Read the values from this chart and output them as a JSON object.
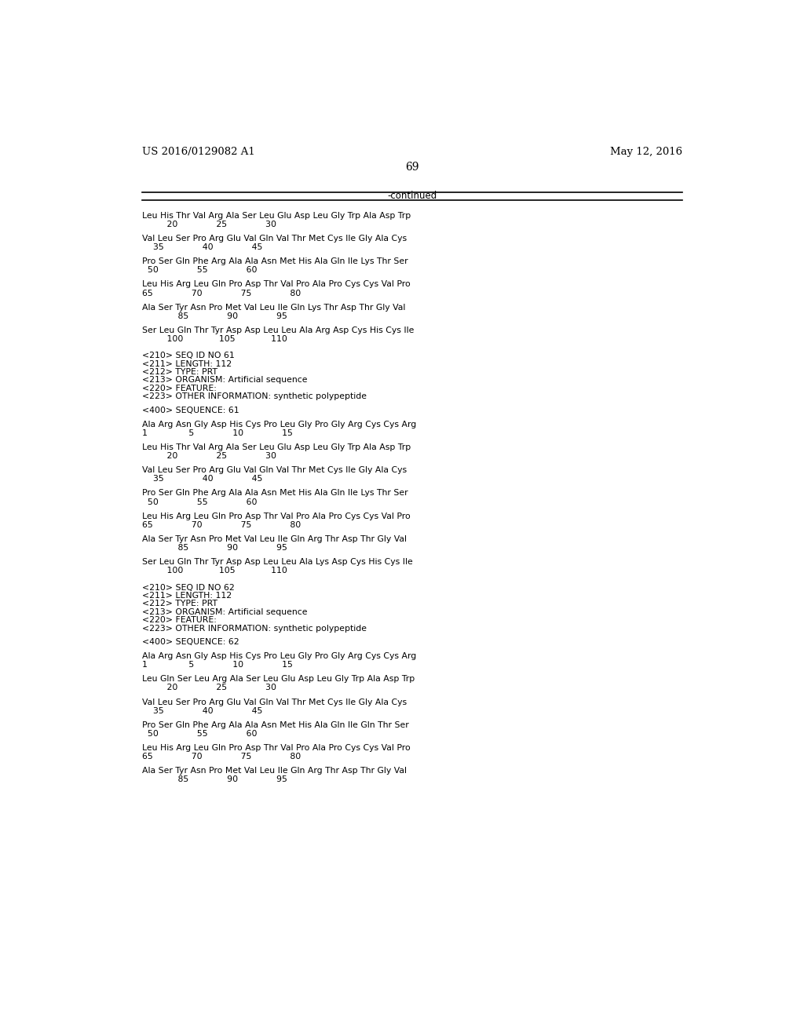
{
  "header_left": "US 2016/0129082 A1",
  "header_right": "May 12, 2016",
  "page_number": "69",
  "continued_label": "-continued",
  "background_color": "#ffffff",
  "text_color": "#000000",
  "mono_font": "Courier New",
  "serif_font": "DejaVu Serif",
  "content": [
    {
      "type": "seq_line",
      "text": "Leu His Thr Val Arg Ala Ser Leu Glu Asp Leu Gly Trp Ala Asp Trp"
    },
    {
      "type": "num_line",
      "text": "         20              25              30"
    },
    {
      "type": "gap"
    },
    {
      "type": "seq_line",
      "text": "Val Leu Ser Pro Arg Glu Val Gln Val Thr Met Cys Ile Gly Ala Cys"
    },
    {
      "type": "num_line",
      "text": "    35              40              45"
    },
    {
      "type": "gap"
    },
    {
      "type": "seq_line",
      "text": "Pro Ser Gln Phe Arg Ala Ala Asn Met His Ala Gln Ile Lys Thr Ser"
    },
    {
      "type": "num_line",
      "text": "  50              55              60"
    },
    {
      "type": "gap"
    },
    {
      "type": "seq_line",
      "text": "Leu His Arg Leu Gln Pro Asp Thr Val Pro Ala Pro Cys Cys Val Pro"
    },
    {
      "type": "num_line",
      "text": "65              70              75              80"
    },
    {
      "type": "gap"
    },
    {
      "type": "seq_line",
      "text": "Ala Ser Tyr Asn Pro Met Val Leu Ile Gln Lys Thr Asp Thr Gly Val"
    },
    {
      "type": "num_line",
      "text": "             85              90              95"
    },
    {
      "type": "gap"
    },
    {
      "type": "seq_line",
      "text": "Ser Leu Gln Thr Tyr Asp Asp Leu Leu Ala Arg Asp Cys His Cys Ile"
    },
    {
      "type": "num_line",
      "text": "         100             105             110"
    },
    {
      "type": "biggap"
    },
    {
      "type": "meta",
      "text": "<210> SEQ ID NO 61"
    },
    {
      "type": "meta",
      "text": "<211> LENGTH: 112"
    },
    {
      "type": "meta",
      "text": "<212> TYPE: PRT"
    },
    {
      "type": "meta",
      "text": "<213> ORGANISM: Artificial sequence"
    },
    {
      "type": "meta",
      "text": "<220> FEATURE:"
    },
    {
      "type": "meta",
      "text": "<223> OTHER INFORMATION: synthetic polypeptide"
    },
    {
      "type": "gap"
    },
    {
      "type": "meta",
      "text": "<400> SEQUENCE: 61"
    },
    {
      "type": "gap"
    },
    {
      "type": "seq_line",
      "text": "Ala Arg Asn Gly Asp His Cys Pro Leu Gly Pro Gly Arg Cys Cys Arg"
    },
    {
      "type": "num_line",
      "text": "1               5              10              15"
    },
    {
      "type": "gap"
    },
    {
      "type": "seq_line",
      "text": "Leu His Thr Val Arg Ala Ser Leu Glu Asp Leu Gly Trp Ala Asp Trp"
    },
    {
      "type": "num_line",
      "text": "         20              25              30"
    },
    {
      "type": "gap"
    },
    {
      "type": "seq_line",
      "text": "Val Leu Ser Pro Arg Glu Val Gln Val Thr Met Cys Ile Gly Ala Cys"
    },
    {
      "type": "num_line",
      "text": "    35              40              45"
    },
    {
      "type": "gap"
    },
    {
      "type": "seq_line",
      "text": "Pro Ser Gln Phe Arg Ala Ala Asn Met His Ala Gln Ile Lys Thr Ser"
    },
    {
      "type": "num_line",
      "text": "  50              55              60"
    },
    {
      "type": "gap"
    },
    {
      "type": "seq_line",
      "text": "Leu His Arg Leu Gln Pro Asp Thr Val Pro Ala Pro Cys Cys Val Pro"
    },
    {
      "type": "num_line",
      "text": "65              70              75              80"
    },
    {
      "type": "gap"
    },
    {
      "type": "seq_line",
      "text": "Ala Ser Tyr Asn Pro Met Val Leu Ile Gln Arg Thr Asp Thr Gly Val"
    },
    {
      "type": "num_line",
      "text": "             85              90              95"
    },
    {
      "type": "gap"
    },
    {
      "type": "seq_line",
      "text": "Ser Leu Gln Thr Tyr Asp Asp Leu Leu Ala Lys Asp Cys His Cys Ile"
    },
    {
      "type": "num_line",
      "text": "         100             105             110"
    },
    {
      "type": "biggap"
    },
    {
      "type": "meta",
      "text": "<210> SEQ ID NO 62"
    },
    {
      "type": "meta",
      "text": "<211> LENGTH: 112"
    },
    {
      "type": "meta",
      "text": "<212> TYPE: PRT"
    },
    {
      "type": "meta",
      "text": "<213> ORGANISM: Artificial sequence"
    },
    {
      "type": "meta",
      "text": "<220> FEATURE:"
    },
    {
      "type": "meta",
      "text": "<223> OTHER INFORMATION: synthetic polypeptide"
    },
    {
      "type": "gap"
    },
    {
      "type": "meta",
      "text": "<400> SEQUENCE: 62"
    },
    {
      "type": "gap"
    },
    {
      "type": "seq_line",
      "text": "Ala Arg Asn Gly Asp His Cys Pro Leu Gly Pro Gly Arg Cys Cys Arg"
    },
    {
      "type": "num_line",
      "text": "1               5              10              15"
    },
    {
      "type": "gap"
    },
    {
      "type": "seq_line",
      "text": "Leu Gln Ser Leu Arg Ala Ser Leu Glu Asp Leu Gly Trp Ala Asp Trp"
    },
    {
      "type": "num_line",
      "text": "         20              25              30"
    },
    {
      "type": "gap"
    },
    {
      "type": "seq_line",
      "text": "Val Leu Ser Pro Arg Glu Val Gln Val Thr Met Cys Ile Gly Ala Cys"
    },
    {
      "type": "num_line",
      "text": "    35              40              45"
    },
    {
      "type": "gap"
    },
    {
      "type": "seq_line",
      "text": "Pro Ser Gln Phe Arg Ala Ala Asn Met His Ala Gln Ile Gln Thr Ser"
    },
    {
      "type": "num_line",
      "text": "  50              55              60"
    },
    {
      "type": "gap"
    },
    {
      "type": "seq_line",
      "text": "Leu His Arg Leu Gln Pro Asp Thr Val Pro Ala Pro Cys Cys Val Pro"
    },
    {
      "type": "num_line",
      "text": "65              70              75              80"
    },
    {
      "type": "gap"
    },
    {
      "type": "seq_line",
      "text": "Ala Ser Tyr Asn Pro Met Val Leu Ile Gln Arg Thr Asp Thr Gly Val"
    },
    {
      "type": "num_line",
      "text": "             85              90              95"
    }
  ]
}
